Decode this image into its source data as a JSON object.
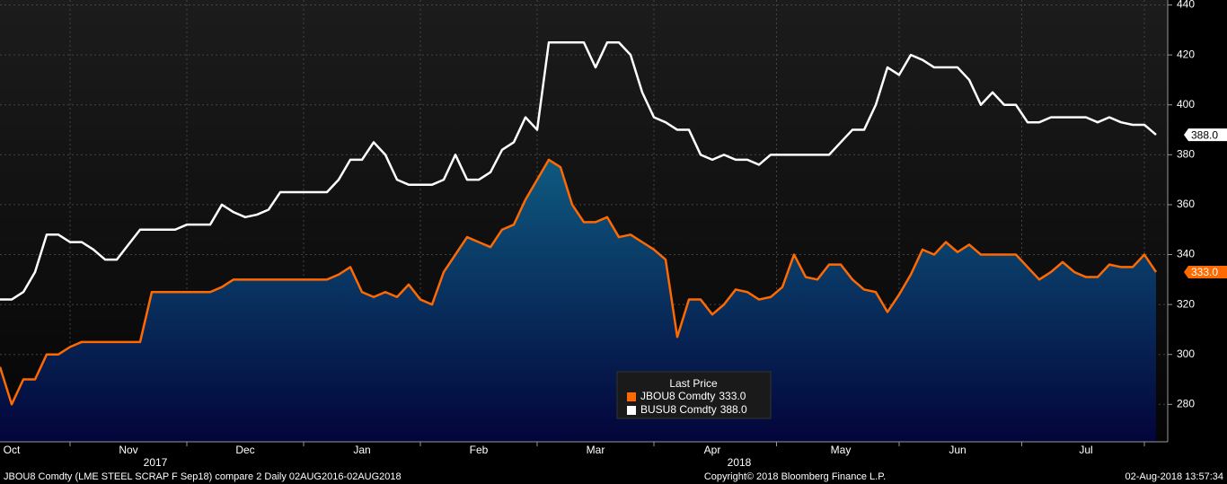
{
  "chart_data": {
    "type": "line",
    "categories": [
      null,
      "Oct",
      null,
      null,
      null,
      null,
      null,
      null,
      null,
      null,
      null,
      "Nov",
      null,
      null,
      null,
      null,
      null,
      null,
      null,
      null,
      null,
      "Dec",
      null,
      null,
      null,
      null,
      null,
      null,
      null,
      null,
      null,
      "Jan",
      null,
      null,
      null,
      null,
      null,
      null,
      null,
      null,
      null,
      "Feb",
      null,
      null,
      null,
      null,
      null,
      null,
      null,
      null,
      null,
      "Mar",
      null,
      null,
      null,
      null,
      null,
      null,
      null,
      null,
      null,
      "Apr",
      null,
      null,
      null,
      null,
      null,
      null,
      null,
      null,
      null,
      null,
      "May",
      null,
      null,
      null,
      null,
      null,
      null,
      null,
      null,
      null,
      "Jun",
      null,
      null,
      null,
      null,
      null,
      null,
      null,
      null,
      null,
      null,
      "Jul",
      null,
      null,
      null,
      null,
      null,
      null
    ],
    "year_labels": [
      "2017",
      "2018"
    ],
    "series": [
      {
        "name": "JBOU8 Comdty",
        "color": "#ff6a00",
        "area": true,
        "values": [
          295,
          280,
          290,
          290,
          300,
          300,
          303,
          305,
          305,
          305,
          305,
          305,
          305,
          325,
          325,
          325,
          325,
          325,
          325,
          327,
          330,
          330,
          330,
          330,
          330,
          330,
          330,
          330,
          330,
          332,
          335,
          325,
          323,
          325,
          323,
          328,
          322,
          320,
          333,
          340,
          347,
          345,
          343,
          350,
          352,
          362,
          370,
          378,
          375,
          360,
          353,
          353,
          355,
          347,
          348,
          345,
          342,
          338,
          307,
          322,
          322,
          316,
          320,
          326,
          325,
          322,
          323,
          327,
          340,
          331,
          330,
          336,
          336,
          330,
          326,
          325,
          317,
          324,
          332,
          342,
          340,
          345,
          341,
          344,
          340,
          340,
          340,
          340,
          335,
          330,
          333,
          337,
          333,
          331,
          331,
          336,
          335,
          335,
          340,
          333
        ],
        "value_labels": [
          null,
          null,
          null,
          null,
          null,
          null,
          null,
          null,
          null,
          null,
          null,
          null,
          null,
          null,
          null,
          null,
          null,
          null,
          null,
          null,
          null,
          null,
          null,
          null,
          null,
          null,
          null,
          null,
          null,
          null,
          null,
          null,
          null,
          null,
          null,
          null,
          null,
          null,
          null,
          null,
          null,
          null,
          null,
          null,
          null,
          null,
          null,
          null,
          null,
          null,
          null,
          null,
          null,
          null,
          null,
          null,
          null,
          null,
          null,
          null,
          null,
          null,
          null,
          null,
          null,
          null,
          null,
          null,
          null,
          null,
          null,
          null,
          null,
          null,
          null,
          null,
          null,
          null,
          null,
          null,
          null,
          null,
          null,
          null,
          null,
          null,
          null,
          null,
          null,
          null,
          null,
          null,
          null,
          null,
          null,
          null,
          null,
          null,
          null,
          "333.0"
        ]
      },
      {
        "name": "BUSU8 Comdty",
        "color": "#ffffff",
        "area": false,
        "values": [
          322,
          322,
          325,
          333,
          348,
          348,
          345,
          345,
          342,
          338,
          338,
          344,
          350,
          350,
          350,
          350,
          352,
          352,
          352,
          360,
          357,
          355,
          356,
          358,
          365,
          365,
          365,
          365,
          365,
          370,
          378,
          378,
          385,
          380,
          370,
          368,
          368,
          368,
          370,
          380,
          370,
          370,
          373,
          382,
          385,
          395,
          390,
          425,
          425,
          425,
          425,
          415,
          425,
          425,
          420,
          405,
          395,
          393,
          390,
          390,
          380,
          378,
          380,
          378,
          378,
          376,
          380,
          380,
          380,
          380,
          380,
          380,
          385,
          390,
          390,
          400,
          415,
          412,
          420,
          418,
          415,
          415,
          415,
          410,
          400,
          405,
          400,
          400,
          393,
          393,
          395,
          395,
          395,
          395,
          393,
          395,
          393,
          392,
          392,
          388
        ],
        "value_labels": [
          null,
          null,
          null,
          null,
          null,
          null,
          null,
          null,
          null,
          null,
          null,
          null,
          null,
          null,
          null,
          null,
          null,
          null,
          null,
          null,
          null,
          null,
          null,
          null,
          null,
          null,
          null,
          null,
          null,
          null,
          null,
          null,
          null,
          null,
          null,
          null,
          null,
          null,
          null,
          null,
          null,
          null,
          null,
          null,
          null,
          null,
          null,
          null,
          null,
          null,
          null,
          null,
          null,
          null,
          null,
          null,
          null,
          null,
          null,
          null,
          null,
          null,
          null,
          null,
          null,
          null,
          null,
          null,
          null,
          null,
          null,
          null,
          null,
          null,
          null,
          null,
          null,
          null,
          null,
          null,
          null,
          null,
          null,
          null,
          null,
          null,
          null,
          null,
          null,
          null,
          null,
          null,
          null,
          null,
          null,
          null,
          null,
          null,
          null,
          "388.0"
        ]
      }
    ],
    "ylim": [
      265,
      442
    ],
    "yticks": [
      280,
      300,
      320,
      340,
      360,
      380,
      400,
      420,
      440
    ],
    "grid": true,
    "legend_title": "Last Price",
    "footer_left": "JBOU8 Comdty (LME STEEL SCRAP F Sep18) compare 2  Daily 02AUG2016-02AUG2018",
    "footer_center": "Copyright© 2018 Bloomberg Finance L.P.",
    "footer_right": "02-Aug-2018 13:57:34"
  }
}
